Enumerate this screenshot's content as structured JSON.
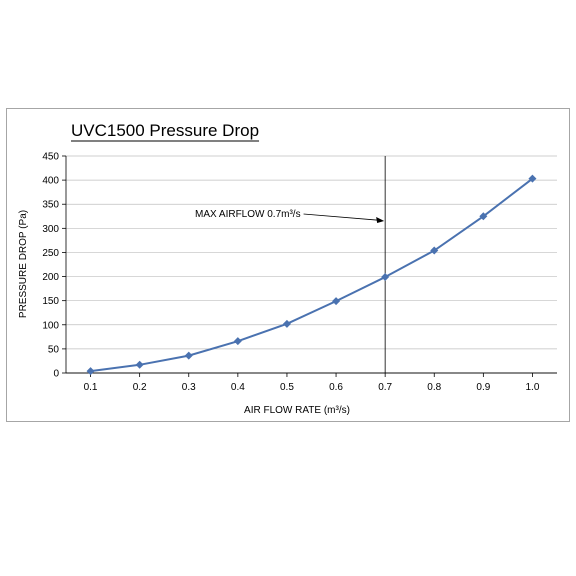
{
  "chart_data": {
    "type": "line",
    "title": "UVC1500 Pressure Drop",
    "xlabel": "AIR FLOW RATE (m³/s)",
    "ylabel": "PRESSURE DROP (Pa)",
    "x": [
      0.1,
      0.2,
      0.3,
      0.4,
      0.5,
      0.6,
      0.7,
      0.8,
      0.9,
      1.0
    ],
    "x_tick_labels": [
      "0.1",
      "0.2",
      "0.3",
      "0.4",
      "0.5",
      "0.6",
      "0.7",
      "0.8",
      "0.9",
      "1.0"
    ],
    "series": [
      {
        "values": [
          4,
          17,
          36,
          66,
          102,
          149,
          199,
          254,
          325,
          403
        ]
      }
    ],
    "ylim": [
      0,
      450
    ],
    "y_ticks": [
      0,
      50,
      100,
      150,
      200,
      250,
      300,
      350,
      400,
      450
    ],
    "grid": "horizontal",
    "legend": "none",
    "series_color": "#4a72b0",
    "annotation": {
      "text": "MAX AIRFLOW 0.7m³/s",
      "x": 0.7
    }
  }
}
